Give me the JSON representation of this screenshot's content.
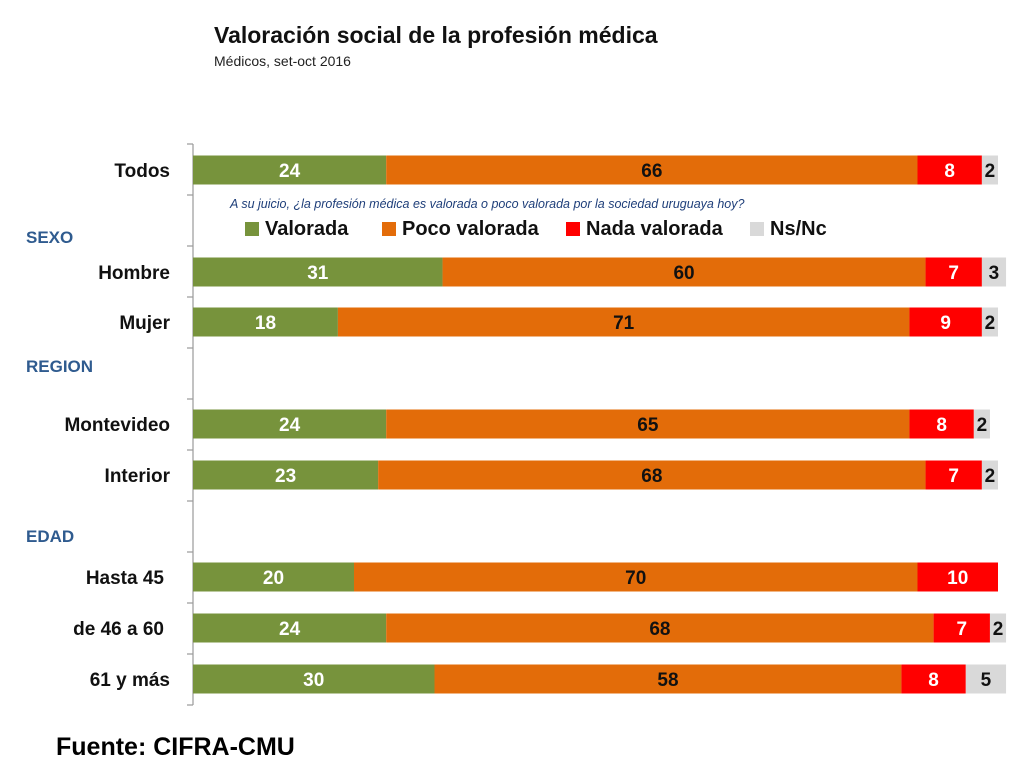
{
  "title": "Valoración social de la profesión médica",
  "subtitle": "Médicos, set-oct 2016",
  "source": "Fuente: CIFRA-CMU",
  "chart_data": {
    "type": "bar",
    "orientation": "horizontal",
    "stacked": true,
    "percent": true,
    "question": "A su juicio, ¿la profesión médica es valorada o poco valorada por la sociedad uruguaya hoy?",
    "group_labels": [
      "SEXO",
      "REGION",
      "EDAD"
    ],
    "categories": [
      "Todos",
      "Hombre",
      "Mujer",
      "Montevideo",
      "Interior",
      "Hasta 45",
      "de 46 a 60",
      "61 y más"
    ],
    "series": [
      {
        "name": "Valorada",
        "color": "#77933c",
        "label_color": "#ffffff",
        "values": [
          24,
          31,
          18,
          24,
          23,
          20,
          24,
          30
        ]
      },
      {
        "name": "Poco valorada",
        "color": "#e36c09",
        "label_color": "#111111",
        "values": [
          66,
          60,
          71,
          65,
          68,
          70,
          68,
          58
        ]
      },
      {
        "name": "Nada valorada",
        "color": "#ff0000",
        "label_color": "#ffffff",
        "values": [
          8,
          7,
          9,
          8,
          7,
          10,
          7,
          8
        ]
      },
      {
        "name": "Ns/Nc",
        "color": "#d9d9d9",
        "label_color": "#111111",
        "values": [
          2,
          3,
          2,
          2,
          2,
          null,
          2,
          5
        ]
      }
    ],
    "xlim": [
      0,
      100
    ]
  }
}
